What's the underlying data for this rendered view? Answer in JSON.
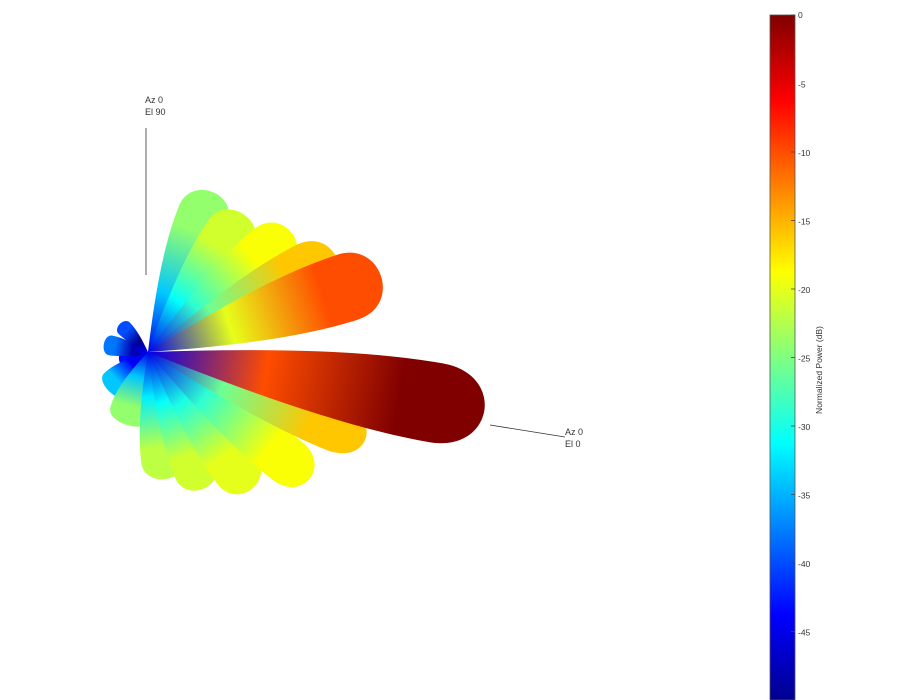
{
  "chart_data": {
    "type": "3d-radiation-pattern",
    "title": "",
    "annotations": [
      {
        "name": "boresight",
        "az_label": "Az 0",
        "el_label": "El 0"
      },
      {
        "name": "zenith",
        "az_label": "Az 0",
        "el_label": "El 90"
      }
    ],
    "colorbar": {
      "label": "Normalized Power (dB)",
      "range": [
        -50,
        0
      ],
      "ticks": [
        0,
        -5,
        -10,
        -15,
        -20,
        -25,
        -30,
        -35,
        -40,
        -45
      ],
      "colormap": [
        "#00008f",
        "#0000ff",
        "#0080ff",
        "#00ffff",
        "#80ff80",
        "#ffff00",
        "#ff8000",
        "#ff0000",
        "#800000"
      ]
    },
    "lobes": [
      {
        "name": "main-lobe",
        "power_db": 0
      },
      {
        "name": "upper-lobe-1",
        "power_db": -10
      },
      {
        "name": "upper-lobe-2",
        "power_db": -16
      },
      {
        "name": "upper-lobe-3",
        "power_db": -19
      },
      {
        "name": "upper-lobe-4",
        "power_db": -21
      },
      {
        "name": "upper-lobe-5",
        "power_db": -24
      },
      {
        "name": "lower-lobe-1",
        "power_db": -16
      },
      {
        "name": "lower-lobe-2",
        "power_db": -19
      },
      {
        "name": "lower-lobe-3",
        "power_db": -20
      },
      {
        "name": "lower-lobe-4",
        "power_db": -21
      },
      {
        "name": "lower-lobe-5",
        "power_db": -22
      },
      {
        "name": "left-lobe-1",
        "power_db": -24
      },
      {
        "name": "left-lobe-2",
        "power_db": -34
      },
      {
        "name": "back-lobe-1",
        "power_db": -38
      },
      {
        "name": "back-lobe-2",
        "power_db": -40
      },
      {
        "name": "back-lobe-3",
        "power_db": -43
      }
    ]
  }
}
